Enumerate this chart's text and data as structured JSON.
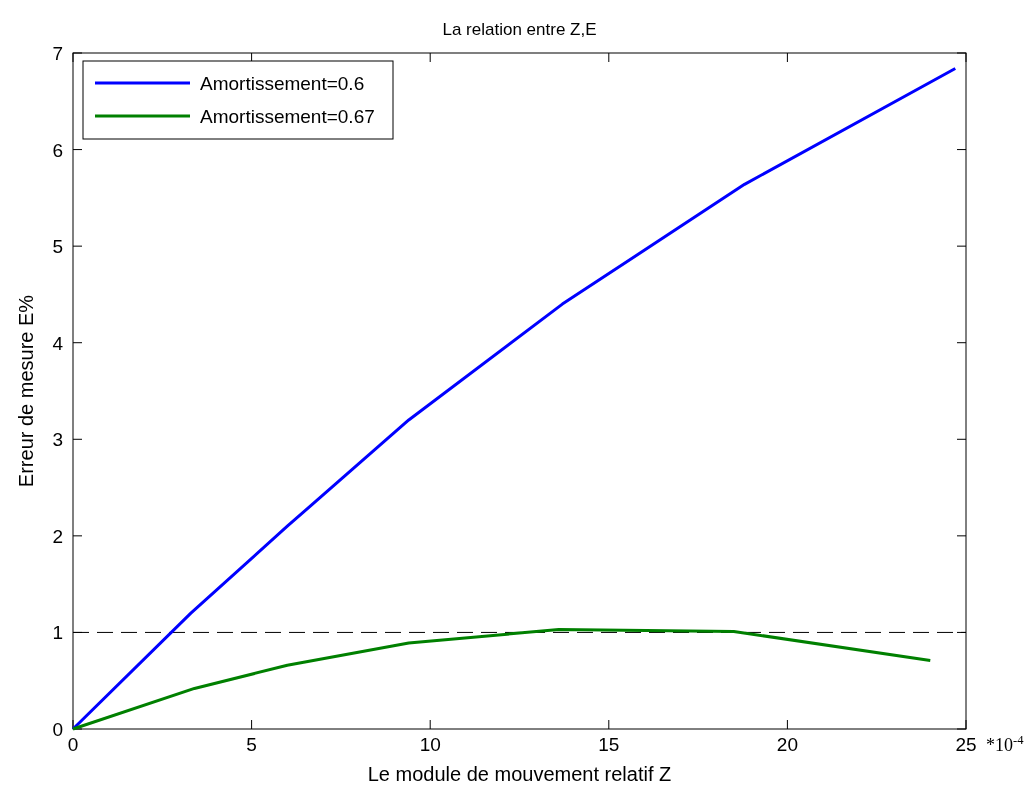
{
  "chart_data": {
    "type": "line",
    "title": "La relation entre Z,E",
    "xlabel": "Le module de mouvement relatif Z",
    "ylabel": "Erreur de mesure E%",
    "x": [
      0,
      3.3,
      6,
      9.4,
      13.7,
      18.8,
      24.7
    ],
    "series": [
      {
        "name": "Amortissement=0.6",
        "color": "#0000ff",
        "values": [
          0,
          1.2,
          2.1,
          3.2,
          4.4,
          5.64,
          6.84
        ]
      },
      {
        "name": "Amortissement=0.67",
        "color": "#008000",
        "x": [
          0,
          3.4,
          6,
          9.4,
          13.6,
          18.5,
          24
        ],
        "values": [
          0,
          0.42,
          0.66,
          0.89,
          1.03,
          1.01,
          0.71
        ]
      }
    ],
    "xlim": [
      0,
      25
    ],
    "xticks": [
      0,
      5,
      10,
      15,
      20,
      25
    ],
    "ylim": [
      0,
      7
    ],
    "yticks": [
      0,
      1,
      2,
      3,
      4,
      5,
      6,
      7
    ],
    "ref_lines": [
      {
        "axis": "y",
        "value": 1,
        "color": "#000000",
        "line_style": "dashed"
      }
    ],
    "annotations": [
      "*10$^{-4}$"
    ],
    "legend": "top left",
    "grid": false,
    "line_style": "solid",
    "marker": "none"
  }
}
